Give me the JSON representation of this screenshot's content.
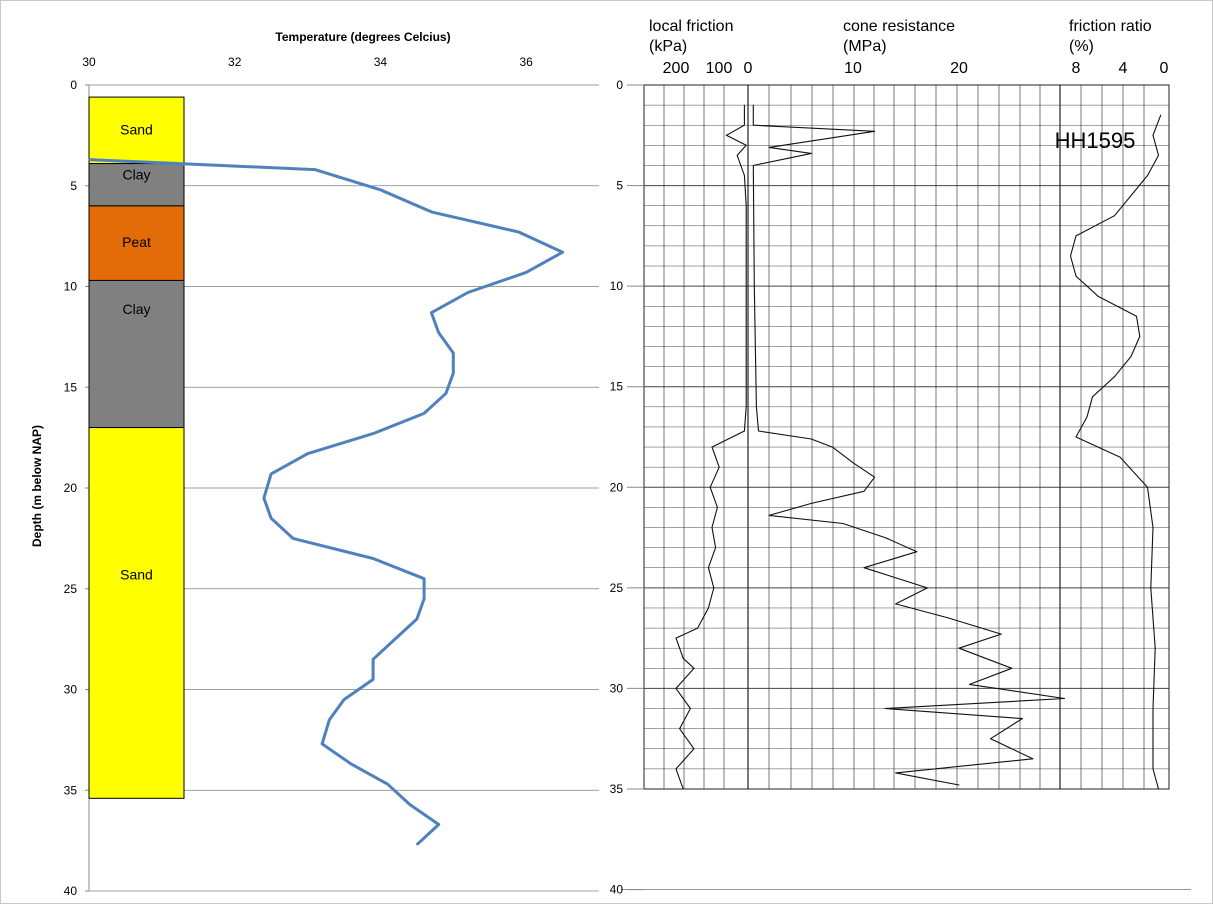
{
  "chart_data": [
    {
      "type": "line",
      "title": "Temperature (degrees Celcius)",
      "ylabel": "Depth (m below NAP)",
      "xlabel": "",
      "xlim": [
        30,
        37
      ],
      "ylim": [
        40,
        0
      ],
      "x_ticks": [
        "30",
        "32",
        "34",
        "36"
      ],
      "y_ticks": [
        "0",
        "5",
        "10",
        "15",
        "20",
        "25",
        "30",
        "35",
        "40"
      ],
      "grid": "horizontal",
      "series": [
        {
          "color": "#4F81BD",
          "points": [
            {
              "x": 30.0,
              "y": 3.7
            },
            {
              "x": 33.1,
              "y": 4.2
            },
            {
              "x": 34.0,
              "y": 5.2
            },
            {
              "x": 34.7,
              "y": 6.3
            },
            {
              "x": 35.9,
              "y": 7.3
            },
            {
              "x": 36.5,
              "y": 8.3
            },
            {
              "x": 36.0,
              "y": 9.3
            },
            {
              "x": 35.2,
              "y": 10.3
            },
            {
              "x": 34.7,
              "y": 11.3
            },
            {
              "x": 34.8,
              "y": 12.3
            },
            {
              "x": 35.0,
              "y": 13.3
            },
            {
              "x": 35.0,
              "y": 14.3
            },
            {
              "x": 34.9,
              "y": 15.3
            },
            {
              "x": 34.6,
              "y": 16.3
            },
            {
              "x": 33.9,
              "y": 17.3
            },
            {
              "x": 33.0,
              "y": 18.3
            },
            {
              "x": 32.5,
              "y": 19.3
            },
            {
              "x": 32.4,
              "y": 20.5
            },
            {
              "x": 32.5,
              "y": 21.5
            },
            {
              "x": 32.8,
              "y": 22.5
            },
            {
              "x": 33.9,
              "y": 23.5
            },
            {
              "x": 34.6,
              "y": 24.5
            },
            {
              "x": 34.6,
              "y": 25.5
            },
            {
              "x": 34.5,
              "y": 26.5
            },
            {
              "x": 34.2,
              "y": 27.5
            },
            {
              "x": 33.9,
              "y": 28.5
            },
            {
              "x": 33.9,
              "y": 29.5
            },
            {
              "x": 33.5,
              "y": 30.5
            },
            {
              "x": 33.3,
              "y": 31.5
            },
            {
              "x": 33.2,
              "y": 32.7
            },
            {
              "x": 33.6,
              "y": 33.7
            },
            {
              "x": 34.1,
              "y": 34.7
            },
            {
              "x": 34.4,
              "y": 35.7
            },
            {
              "x": 34.8,
              "y": 36.7
            },
            {
              "x": 34.5,
              "y": 37.7
            }
          ]
        }
      ],
      "layers": [
        {
          "label": "Sand",
          "top": 0.6,
          "bottom": 3.9,
          "color": "#FFFF00"
        },
        {
          "label": "Clay",
          "top": 3.9,
          "bottom": 6.0,
          "color": "#808080"
        },
        {
          "label": "Peat",
          "top": 6.0,
          "bottom": 9.7,
          "color": "#E36C09"
        },
        {
          "label": "Clay",
          "top": 9.7,
          "bottom": 17.0,
          "color": "#808080"
        },
        {
          "label": "Sand",
          "top": 17.0,
          "bottom": 35.4,
          "color": "#FFFF00"
        }
      ]
    },
    {
      "type": "line",
      "title": "",
      "ylim": [
        40,
        0
      ],
      "y_ticks": [
        "0",
        "5",
        "10",
        "15",
        "20",
        "25",
        "30",
        "35",
        "40"
      ],
      "grid": "on",
      "headers": [
        {
          "line1": "local friction",
          "line2": "(kPa)",
          "ticks": [
            "200",
            "100",
            "0"
          ]
        },
        {
          "line1": "cone resistance",
          "line2": "(MPa)",
          "ticks": [
            "10",
            "20"
          ]
        },
        {
          "line1": "friction ratio",
          "line2": "(%)",
          "ticks": [
            "8",
            "4",
            "0"
          ]
        }
      ],
      "scan_label": "HH1595",
      "series": [
        {
          "name": "local friction",
          "points": [
            {
              "x": 10,
              "y": 1.0
            },
            {
              "x": 10,
              "y": 2.0
            },
            {
              "x": 60,
              "y": 2.5
            },
            {
              "x": 5,
              "y": 3.0
            },
            {
              "x": 30,
              "y": 3.5
            },
            {
              "x": 10,
              "y": 4.5
            },
            {
              "x": 5,
              "y": 6
            },
            {
              "x": 5,
              "y": 10
            },
            {
              "x": 5,
              "y": 16
            },
            {
              "x": 10,
              "y": 17.2
            },
            {
              "x": 100,
              "y": 18
            },
            {
              "x": 80,
              "y": 19
            },
            {
              "x": 105,
              "y": 20
            },
            {
              "x": 85,
              "y": 21
            },
            {
              "x": 100,
              "y": 22
            },
            {
              "x": 90,
              "y": 23
            },
            {
              "x": 110,
              "y": 24
            },
            {
              "x": 95,
              "y": 25
            },
            {
              "x": 110,
              "y": 26
            },
            {
              "x": 140,
              "y": 27
            },
            {
              "x": 200,
              "y": 27.5
            },
            {
              "x": 180,
              "y": 28.5
            },
            {
              "x": 150,
              "y": 29
            },
            {
              "x": 200,
              "y": 30
            },
            {
              "x": 160,
              "y": 31
            },
            {
              "x": 190,
              "y": 32
            },
            {
              "x": 150,
              "y": 33
            },
            {
              "x": 200,
              "y": 34
            },
            {
              "x": 180,
              "y": 35
            }
          ]
        },
        {
          "name": "cone resistance",
          "points": [
            {
              "x": 0.5,
              "y": 1.0
            },
            {
              "x": 0.5,
              "y": 2.0
            },
            {
              "x": 12,
              "y": 2.3
            },
            {
              "x": 2,
              "y": 3.1
            },
            {
              "x": 6,
              "y": 3.4
            },
            {
              "x": 0.5,
              "y": 4
            },
            {
              "x": 0.6,
              "y": 10
            },
            {
              "x": 0.8,
              "y": 16
            },
            {
              "x": 1,
              "y": 17.2
            },
            {
              "x": 6,
              "y": 17.6
            },
            {
              "x": 8,
              "y": 18
            },
            {
              "x": 10,
              "y": 18.8
            },
            {
              "x": 12,
              "y": 19.5
            },
            {
              "x": 11,
              "y": 20.2
            },
            {
              "x": 6,
              "y": 20.8
            },
            {
              "x": 2,
              "y": 21.4
            },
            {
              "x": 9,
              "y": 21.8
            },
            {
              "x": 13,
              "y": 22.5
            },
            {
              "x": 16,
              "y": 23.2
            },
            {
              "x": 11,
              "y": 24
            },
            {
              "x": 17,
              "y": 25
            },
            {
              "x": 14,
              "y": 25.8
            },
            {
              "x": 19,
              "y": 26.5
            },
            {
              "x": 24,
              "y": 27.3
            },
            {
              "x": 20,
              "y": 28
            },
            {
              "x": 25,
              "y": 29
            },
            {
              "x": 21,
              "y": 29.8
            },
            {
              "x": 30,
              "y": 30.5
            },
            {
              "x": 13,
              "y": 31
            },
            {
              "x": 26,
              "y": 31.5
            },
            {
              "x": 23,
              "y": 32.5
            },
            {
              "x": 27,
              "y": 33.5
            },
            {
              "x": 14,
              "y": 34.2
            },
            {
              "x": 20,
              "y": 34.8
            }
          ]
        },
        {
          "name": "friction ratio",
          "points": [
            {
              "x": 0.3,
              "y": 1.5
            },
            {
              "x": 1.0,
              "y": 2.5
            },
            {
              "x": 0.5,
              "y": 3.5
            },
            {
              "x": 1.5,
              "y": 4.5
            },
            {
              "x": 3.0,
              "y": 5.5
            },
            {
              "x": 4.5,
              "y": 6.5
            },
            {
              "x": 8.0,
              "y": 7.5
            },
            {
              "x": 8.5,
              "y": 8.5
            },
            {
              "x": 8.0,
              "y": 9.5
            },
            {
              "x": 6.0,
              "y": 10.5
            },
            {
              "x": 2.5,
              "y": 11.5
            },
            {
              "x": 2.2,
              "y": 12.5
            },
            {
              "x": 3.0,
              "y": 13.5
            },
            {
              "x": 4.5,
              "y": 14.5
            },
            {
              "x": 6.5,
              "y": 15.5
            },
            {
              "x": 7.0,
              "y": 16.5
            },
            {
              "x": 8.0,
              "y": 17.5
            },
            {
              "x": 4.0,
              "y": 18.5
            },
            {
              "x": 1.5,
              "y": 20
            },
            {
              "x": 1.0,
              "y": 22
            },
            {
              "x": 1.2,
              "y": 25
            },
            {
              "x": 0.8,
              "y": 28
            },
            {
              "x": 1.0,
              "y": 31
            },
            {
              "x": 1.0,
              "y": 34
            },
            {
              "x": 0.5,
              "y": 35
            }
          ]
        }
      ]
    }
  ]
}
